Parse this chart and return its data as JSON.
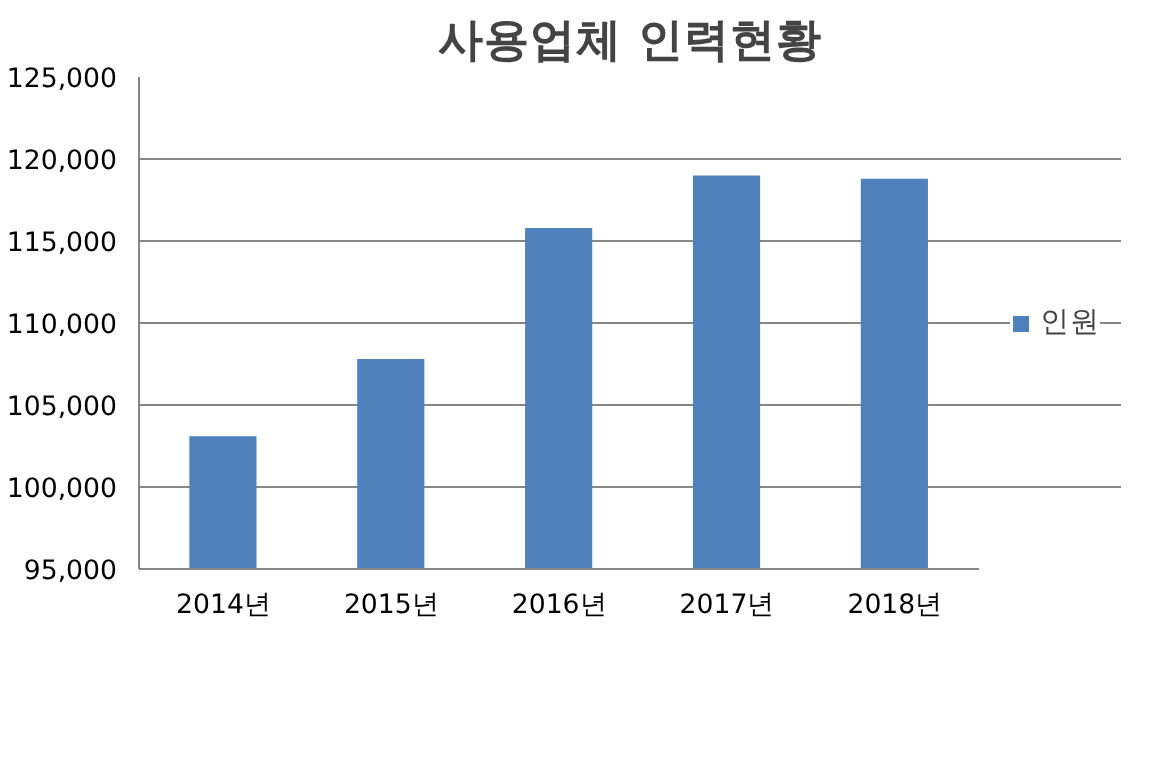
{
  "chart_data": {
    "type": "bar",
    "title": "사용업체 인력현황",
    "categories": [
      "2014년",
      "2015년",
      "2016년",
      "2017년",
      "2018년"
    ],
    "series": [
      {
        "name": "인원",
        "color": "#4f81bd",
        "values": [
          103100,
          107800,
          115800,
          119000,
          118800
        ]
      }
    ],
    "ylim": [
      95000,
      125000
    ],
    "yticks": [
      {
        "value": 95000,
        "label": "95,000"
      },
      {
        "value": 100000,
        "label": "100,000"
      },
      {
        "value": 105000,
        "label": "105,000"
      },
      {
        "value": 110000,
        "label": "110,000"
      },
      {
        "value": 115000,
        "label": "115,000"
      },
      {
        "value": 120000,
        "label": "120,000"
      },
      {
        "value": 125000,
        "label": "125,000"
      }
    ],
    "grid": "y",
    "legend": "right"
  }
}
